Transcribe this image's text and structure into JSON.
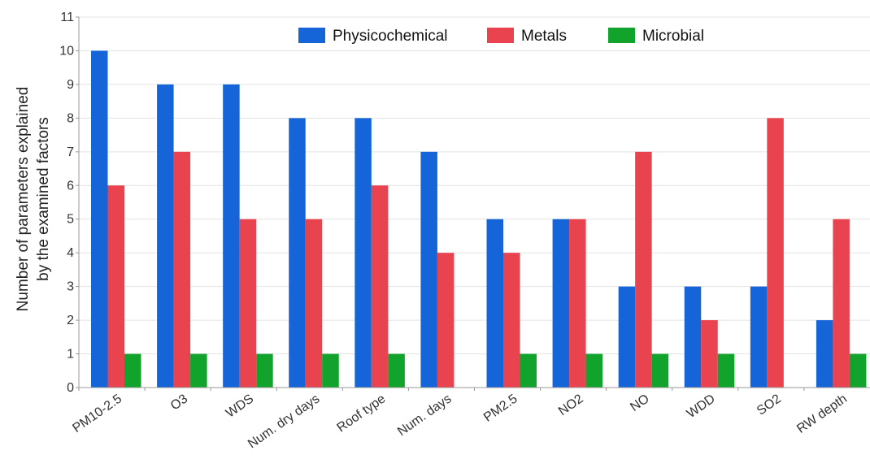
{
  "chart_data": {
    "type": "bar",
    "title": "",
    "xlabel": "",
    "ylabel_lines": [
      "Number of parameters explained",
      "by the examined factors"
    ],
    "ylim": [
      0,
      11
    ],
    "yticks": [
      0,
      1,
      2,
      3,
      4,
      5,
      6,
      7,
      8,
      9,
      10,
      11
    ],
    "grid": "horizontal",
    "legend_position": "top-center",
    "categories": [
      "PM10-2.5",
      "O3",
      "WDS",
      "Num. dry days",
      "Roof type",
      "Num. days",
      "PM2.5",
      "NO2",
      "NO",
      "WDD",
      "SO2",
      "RW depth"
    ],
    "series": [
      {
        "name": "Physicochemical",
        "color": "#1565d8",
        "values": [
          10,
          9,
          9,
          8,
          8,
          7,
          5,
          5,
          3,
          3,
          3,
          2
        ]
      },
      {
        "name": "Metals",
        "color": "#e8434f",
        "values": [
          6,
          7,
          5,
          5,
          6,
          4,
          4,
          5,
          7,
          2,
          8,
          5
        ]
      },
      {
        "name": "Microbial",
        "color": "#12a32c",
        "values": [
          1,
          1,
          1,
          1,
          1,
          0,
          1,
          1,
          1,
          1,
          0,
          1
        ]
      }
    ]
  }
}
